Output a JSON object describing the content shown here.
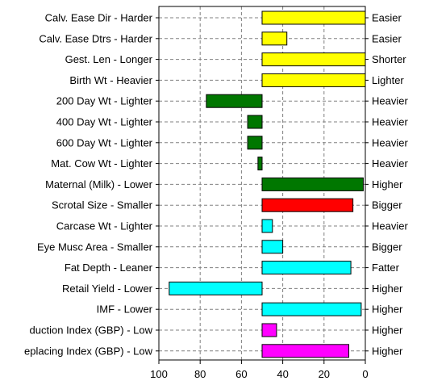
{
  "chart_data": {
    "type": "bar",
    "orientation": "horizontal",
    "x_reversed": true,
    "xlim": [
      100,
      0
    ],
    "xticks": [
      "100",
      "80",
      "60",
      "40",
      "20",
      "0"
    ],
    "grid": true,
    "baseline": 50,
    "categories": [
      {
        "left_label": "Calv. Ease Dir - Harder",
        "right_label": "Easier",
        "value": 0,
        "color": "#ffff00"
      },
      {
        "left_label": "Calv. Ease Dtrs - Harder",
        "right_label": "Easier",
        "value": 38,
        "color": "#ffff00"
      },
      {
        "left_label": "Gest. Len - Longer",
        "right_label": "Shorter",
        "value": 0,
        "color": "#ffff00"
      },
      {
        "left_label": "Birth Wt - Heavier",
        "right_label": "Lighter",
        "value": 0,
        "color": "#ffff00"
      },
      {
        "left_label": "200 Day Wt - Lighter",
        "right_label": "Heavier",
        "value": 77,
        "color": "#007700"
      },
      {
        "left_label": "400 Day Wt - Lighter",
        "right_label": "Heavier",
        "value": 57,
        "color": "#007700"
      },
      {
        "left_label": "600 Day Wt - Lighter",
        "right_label": "Heavier",
        "value": 57,
        "color": "#007700"
      },
      {
        "left_label": "Mat. Cow Wt - Lighter",
        "right_label": "Heavier",
        "value": 52,
        "color": "#007700"
      },
      {
        "left_label": "Maternal (Milk) - Lower",
        "right_label": "Higher",
        "value": 1,
        "color": "#007700"
      },
      {
        "left_label": "Scrotal Size - Smaller",
        "right_label": "Bigger",
        "value": 6,
        "color": "#ff0000"
      },
      {
        "left_label": "Carcase Wt - Lighter",
        "right_label": "Heavier",
        "value": 45,
        "color": "#00ffff"
      },
      {
        "left_label": "Eye Musc Area - Smaller",
        "right_label": "Bigger",
        "value": 40,
        "color": "#00ffff"
      },
      {
        "left_label": "Fat Depth - Leaner",
        "right_label": "Fatter",
        "value": 7,
        "color": "#00ffff"
      },
      {
        "left_label": "Retail Yield - Lower",
        "right_label": "Higher",
        "value": 95,
        "color": "#00ffff"
      },
      {
        "left_label": "IMF - Lower",
        "right_label": "Higher",
        "value": 2,
        "color": "#00ffff"
      },
      {
        "left_label": "duction Index (GBP) - Low",
        "right_label": "Higher",
        "value": 43,
        "color": "#ff00ff"
      },
      {
        "left_label": "eplacing Index (GBP) - Low",
        "right_label": "Higher",
        "value": 8,
        "color": "#ff00ff"
      }
    ]
  }
}
